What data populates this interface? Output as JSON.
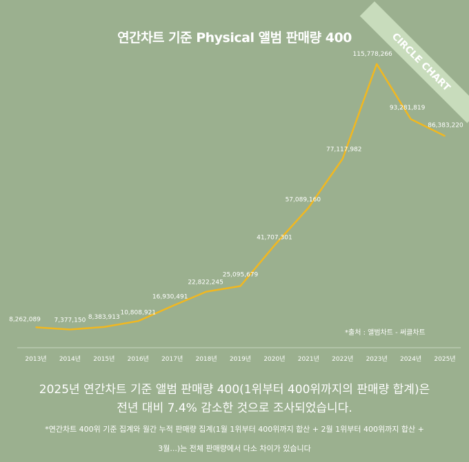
{
  "title": "연간차트 기준  Physical 앨범 판매량 400",
  "ribbon": "CIRCLE CHART",
  "source": "*출처 : 앨범차트 - 써클차트",
  "summary_line1": "2025년 연간차트 기준 앨범 판매량 400(1위부터 400위까지의 판매량 합계)은",
  "summary_line2": "전년 대비 7.4% 감소한 것으로 조사되었습니다.",
  "footnote_line1": "*연간차트 400위 기준 집계와 월간 누적 판매량 집계(1월 1위부터 400위까지 합산 + 2월 1위부터 400위까지 합산 +",
  "footnote_line2": "3월...)는  전체 판매량에서 다소 차이가 있습니다",
  "colors": {
    "background": "#9bb08f",
    "line": "#f2b81f",
    "text": "#ffffff"
  },
  "chart_data": {
    "type": "line",
    "title": "연간차트 기준  Physical 앨범 판매량 400",
    "categories": [
      "2013년",
      "2014년",
      "2015년",
      "2016년",
      "2017년",
      "2018년",
      "2019년",
      "2020년",
      "2021년",
      "2022년",
      "2023년",
      "2024년",
      "2025년"
    ],
    "values": [
      8262089,
      7377150,
      8383913,
      10808921,
      16930491,
      22822245,
      25095679,
      41707301,
      57089160,
      77117982,
      115778266,
      93281819,
      86383220
    ],
    "labels": [
      "8,262,089",
      "7,377,150",
      "8,383,913",
      "10,808,921",
      "16,930,491",
      "22,822,245",
      "25,095,679",
      "41,707,301",
      "57,089,160",
      "77,117,982",
      "115,778,266",
      "93,281,819",
      "86,383,220"
    ],
    "ylim": [
      0,
      120000000
    ],
    "grid": false,
    "legend": "none"
  }
}
